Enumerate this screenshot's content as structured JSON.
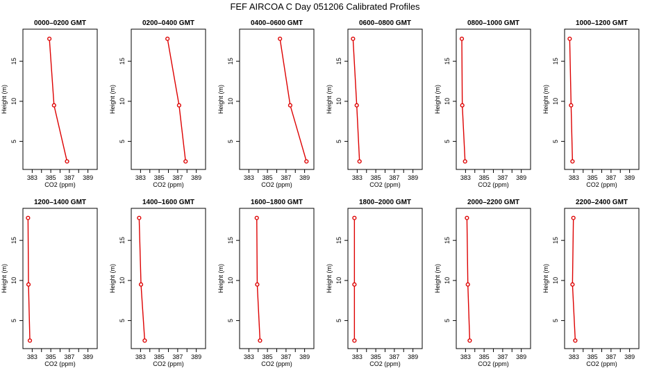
{
  "title": "FEF AIRCOA C  Day 051206  Calibrated Profiles",
  "line_color": "#dd0000",
  "chart_data": [
    {
      "type": "line",
      "title": "0000–0200 GMT",
      "xlabel": "CO2 (ppm)",
      "ylabel": "Height (m)",
      "xlim": [
        382,
        390
      ],
      "ylim": [
        1.5,
        19
      ],
      "xticks": [
        383,
        385,
        387,
        389
      ],
      "yticks": [
        5,
        10,
        15
      ],
      "series": [
        {
          "x": [
            384.85,
            385.35,
            386.75
          ],
          "y": [
            17.8,
            9.5,
            2.5
          ]
        }
      ]
    },
    {
      "type": "line",
      "title": "0200–0400 GMT",
      "xlabel": "CO2 (ppm)",
      "ylabel": "Height (m)",
      "xlim": [
        382,
        390
      ],
      "ylim": [
        1.5,
        19
      ],
      "xticks": [
        383,
        385,
        387,
        389
      ],
      "yticks": [
        5,
        10,
        15
      ],
      "series": [
        {
          "x": [
            385.9,
            387.15,
            387.85
          ],
          "y": [
            17.8,
            9.5,
            2.5
          ]
        }
      ]
    },
    {
      "type": "line",
      "title": "0400–0600 GMT",
      "xlabel": "CO2 (ppm)",
      "ylabel": "Height (m)",
      "xlim": [
        382,
        390
      ],
      "ylim": [
        1.5,
        19
      ],
      "xticks": [
        383,
        385,
        387,
        389
      ],
      "yticks": [
        5,
        10,
        15
      ],
      "series": [
        {
          "x": [
            386.35,
            387.45,
            389.2
          ],
          "y": [
            17.8,
            9.5,
            2.5
          ]
        }
      ]
    },
    {
      "type": "line",
      "title": "0600–0800 GMT",
      "xlabel": "CO2 (ppm)",
      "ylabel": "Height (m)",
      "xlim": [
        382,
        390
      ],
      "ylim": [
        1.5,
        19
      ],
      "xticks": [
        383,
        385,
        387,
        389
      ],
      "yticks": [
        5,
        10,
        15
      ],
      "series": [
        {
          "x": [
            382.55,
            382.95,
            383.25
          ],
          "y": [
            17.8,
            9.5,
            2.5
          ]
        }
      ]
    },
    {
      "type": "line",
      "title": "0800–1000 GMT",
      "xlabel": "CO2 (ppm)",
      "ylabel": "Height (m)",
      "xlim": [
        382,
        390
      ],
      "ylim": [
        1.5,
        19
      ],
      "xticks": [
        383,
        385,
        387,
        389
      ],
      "yticks": [
        5,
        10,
        15
      ],
      "series": [
        {
          "x": [
            382.6,
            382.65,
            382.95
          ],
          "y": [
            17.8,
            9.5,
            2.5
          ]
        }
      ]
    },
    {
      "type": "line",
      "title": "1000–1200 GMT",
      "xlabel": "CO2 (ppm)",
      "ylabel": "Height (m)",
      "xlim": [
        382,
        390
      ],
      "ylim": [
        1.5,
        19
      ],
      "xticks": [
        383,
        385,
        387,
        389
      ],
      "yticks": [
        5,
        10,
        15
      ],
      "series": [
        {
          "x": [
            382.55,
            382.7,
            382.85
          ],
          "y": [
            17.8,
            9.5,
            2.5
          ]
        }
      ]
    },
    {
      "type": "line",
      "title": "1200–1400 GMT",
      "xlabel": "CO2 (ppm)",
      "ylabel": "Height (m)",
      "xlim": [
        382,
        390
      ],
      "ylim": [
        1.5,
        19
      ],
      "xticks": [
        383,
        385,
        387,
        389
      ],
      "yticks": [
        5,
        10,
        15
      ],
      "series": [
        {
          "x": [
            382.55,
            382.6,
            382.75
          ],
          "y": [
            17.8,
            9.5,
            2.5
          ]
        }
      ]
    },
    {
      "type": "line",
      "title": "1400–1600 GMT",
      "xlabel": "CO2 (ppm)",
      "ylabel": "Height (m)",
      "xlim": [
        382,
        390
      ],
      "ylim": [
        1.5,
        19
      ],
      "xticks": [
        383,
        385,
        387,
        389
      ],
      "yticks": [
        5,
        10,
        15
      ],
      "series": [
        {
          "x": [
            382.85,
            383.05,
            383.45
          ],
          "y": [
            17.8,
            9.5,
            2.5
          ]
        }
      ]
    },
    {
      "type": "line",
      "title": "1600–1800 GMT",
      "xlabel": "CO2 (ppm)",
      "ylabel": "Height (m)",
      "xlim": [
        382,
        390
      ],
      "ylim": [
        1.5,
        19
      ],
      "xticks": [
        383,
        385,
        387,
        389
      ],
      "yticks": [
        5,
        10,
        15
      ],
      "series": [
        {
          "x": [
            383.85,
            383.9,
            384.2
          ],
          "y": [
            17.8,
            9.5,
            2.5
          ]
        }
      ]
    },
    {
      "type": "line",
      "title": "1800–2000 GMT",
      "xlabel": "CO2 (ppm)",
      "ylabel": "Height (m)",
      "xlim": [
        382,
        390
      ],
      "ylim": [
        1.5,
        19
      ],
      "xticks": [
        383,
        385,
        387,
        389
      ],
      "yticks": [
        5,
        10,
        15
      ],
      "series": [
        {
          "x": [
            382.7,
            382.7,
            382.7
          ],
          "y": [
            17.8,
            9.5,
            2.5
          ]
        }
      ]
    },
    {
      "type": "line",
      "title": "2000–2200 GMT",
      "xlabel": "CO2 (ppm)",
      "ylabel": "Height (m)",
      "xlim": [
        382,
        390
      ],
      "ylim": [
        1.5,
        19
      ],
      "xticks": [
        383,
        385,
        387,
        389
      ],
      "yticks": [
        5,
        10,
        15
      ],
      "series": [
        {
          "x": [
            383.15,
            383.25,
            383.45
          ],
          "y": [
            17.8,
            9.5,
            2.5
          ]
        }
      ]
    },
    {
      "type": "line",
      "title": "2200–2400 GMT",
      "xlabel": "CO2 (ppm)",
      "ylabel": "Height (m)",
      "xlim": [
        382,
        390
      ],
      "ylim": [
        1.5,
        19
      ],
      "xticks": [
        383,
        385,
        387,
        389
      ],
      "yticks": [
        5,
        10,
        15
      ],
      "series": [
        {
          "x": [
            382.95,
            382.85,
            383.15
          ],
          "y": [
            17.8,
            9.5,
            2.5
          ]
        }
      ]
    }
  ]
}
